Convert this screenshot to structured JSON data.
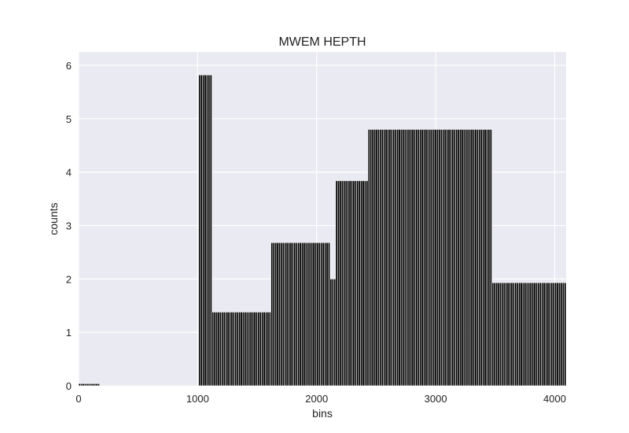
{
  "chart_data": {
    "type": "bar",
    "title": "MWEM HEPTH",
    "xlabel": "bins",
    "ylabel": "counts",
    "xlim": [
      0,
      4096
    ],
    "ylim": [
      0,
      6.25
    ],
    "xticks": [
      0,
      1000,
      2000,
      3000,
      4000
    ],
    "yticks": [
      0,
      1,
      2,
      3,
      4,
      5,
      6
    ],
    "grid": true,
    "bin_width": 16,
    "bar_color": "#000000",
    "edge_color": "#ffffff",
    "background_color": "#eaeaf2",
    "segments": [
      {
        "x_start": 0,
        "x_end": 176,
        "value": 0.04
      },
      {
        "x_start": 176,
        "x_end": 1008,
        "value": 0.01
      },
      {
        "x_start": 1008,
        "x_end": 1120,
        "value": 5.82
      },
      {
        "x_start": 1120,
        "x_end": 1616,
        "value": 1.38
      },
      {
        "x_start": 1616,
        "x_end": 2112,
        "value": 2.68
      },
      {
        "x_start": 2112,
        "x_end": 2160,
        "value": 2.0
      },
      {
        "x_start": 2160,
        "x_end": 2432,
        "value": 3.84
      },
      {
        "x_start": 2432,
        "x_end": 3472,
        "value": 4.8
      },
      {
        "x_start": 3472,
        "x_end": 4096,
        "value": 1.93
      }
    ]
  }
}
